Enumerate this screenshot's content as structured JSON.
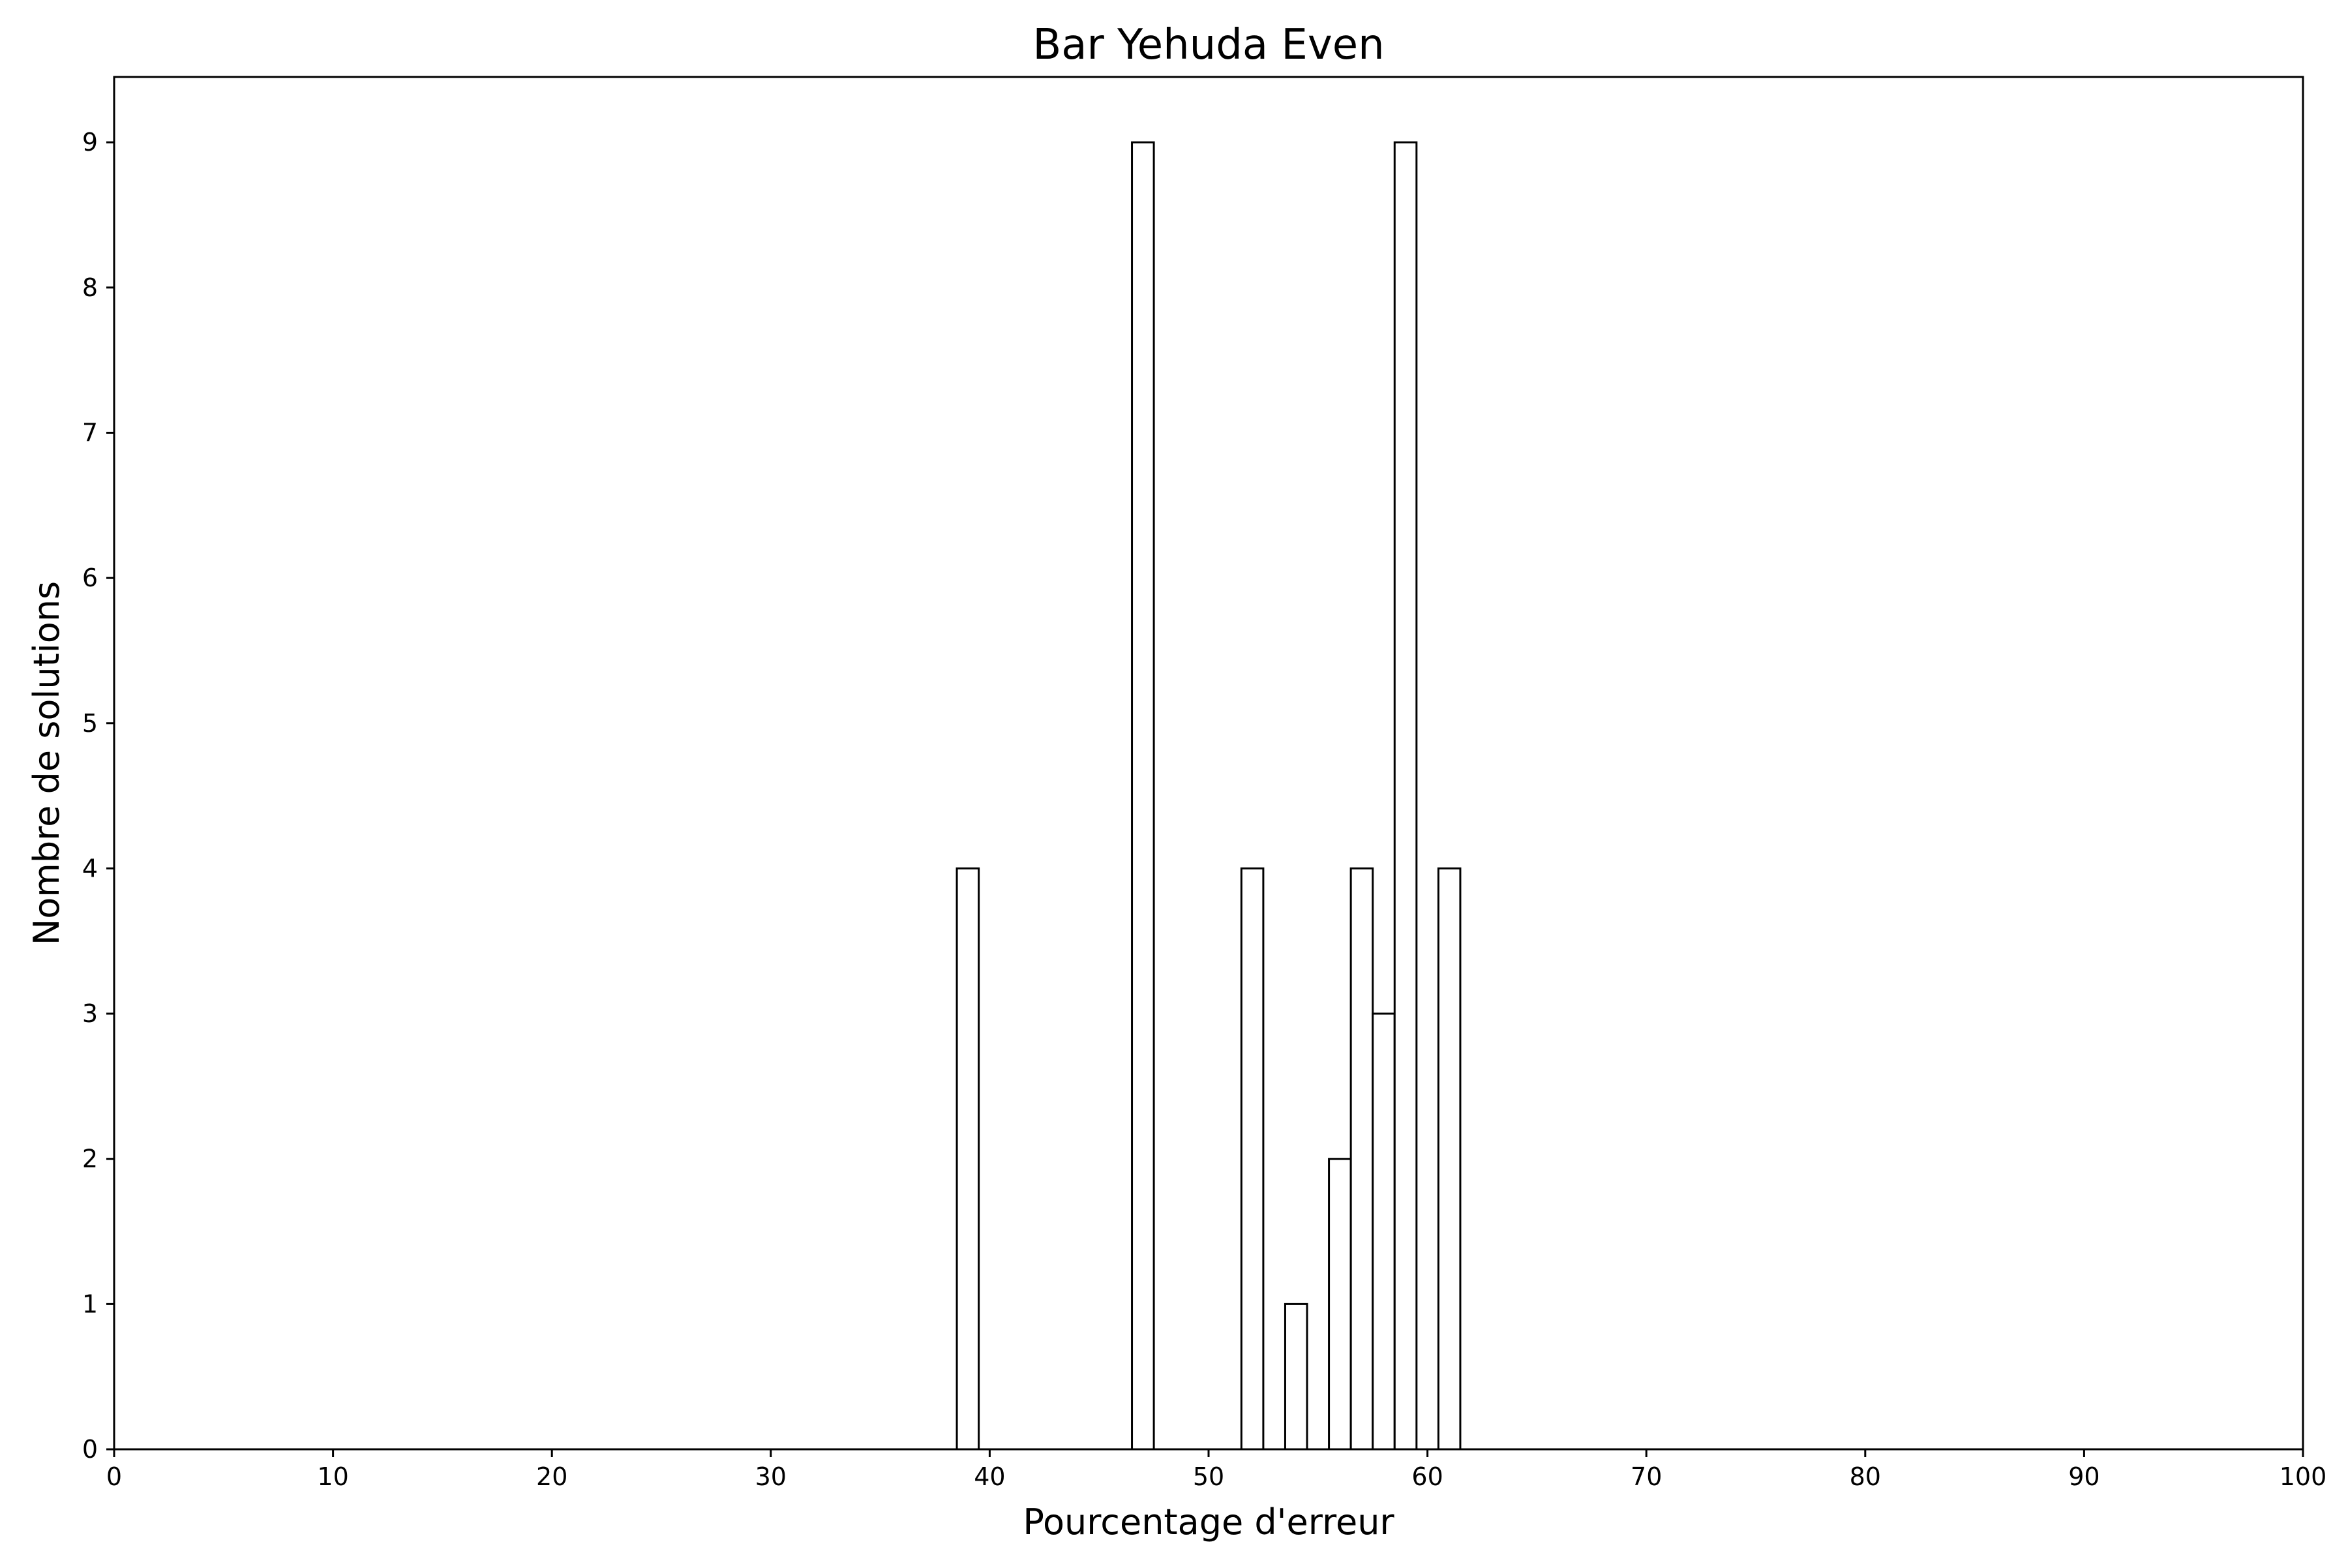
{
  "chart_data": {
    "type": "bar",
    "title": "Bar Yehuda Even",
    "xlabel": "Pourcentage d'erreur",
    "ylabel": "Nombre de solutions",
    "xlim": [
      0,
      100
    ],
    "ylim": [
      0,
      9.45
    ],
    "x_ticks": [
      0,
      10,
      20,
      30,
      40,
      50,
      60,
      70,
      80,
      90,
      100
    ],
    "y_ticks": [
      0,
      1,
      2,
      3,
      4,
      5,
      6,
      7,
      8,
      9
    ],
    "bar_width": 1,
    "bars": [
      {
        "x": 39,
        "value": 4
      },
      {
        "x": 47,
        "value": 9
      },
      {
        "x": 52,
        "value": 4
      },
      {
        "x": 54,
        "value": 1
      },
      {
        "x": 56,
        "value": 2
      },
      {
        "x": 57,
        "value": 4
      },
      {
        "x": 58,
        "value": 3
      },
      {
        "x": 59,
        "value": 9
      },
      {
        "x": 61,
        "value": 4
      }
    ],
    "grid": false,
    "legend": "none",
    "bar_fill": "#ffffff",
    "bar_edge": "#000000"
  }
}
